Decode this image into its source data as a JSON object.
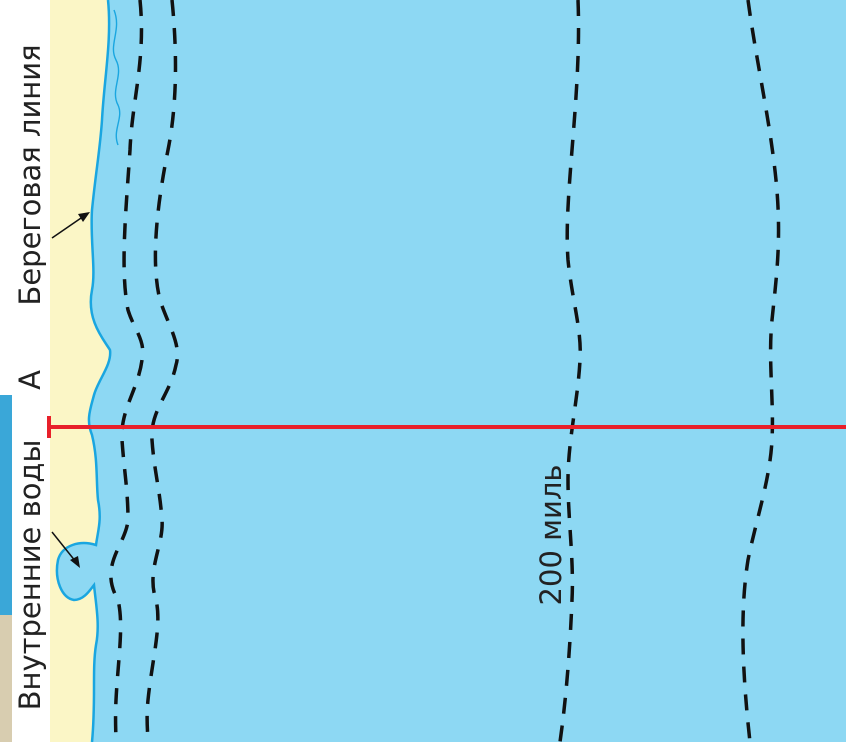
{
  "labels": {
    "coastline": "Береговая линия",
    "internal_waters": "Внутренние воды",
    "point_a": "А",
    "distance": "200 миль"
  },
  "colors": {
    "sea": "#8dd8f3",
    "land": "#fbf6c6",
    "coast_line": "#1aa6e0",
    "baseline_line": "#e8202a",
    "zone_boundaries": "#111111",
    "left_strip": "#3aa7d8"
  },
  "boundaries": [
    {
      "name": "territorial-sea-boundary"
    },
    {
      "name": "contiguous-zone-boundary"
    },
    {
      "name": "200-mile-zone-boundary"
    },
    {
      "name": "outer-boundary"
    }
  ]
}
